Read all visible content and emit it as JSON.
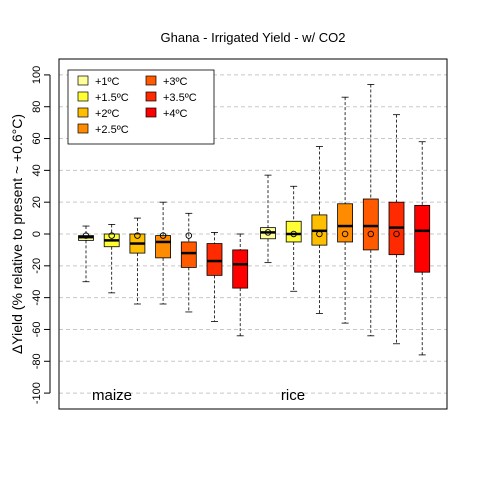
{
  "chart_data": {
    "type": "box",
    "title": "Ghana - Irrigated Yield - w/ CO2",
    "xlabel": "",
    "ylabel": "ΔYield (% relative to present ~ +0.6°C)",
    "ylim": [
      -110,
      110
    ],
    "yticks": [
      -100,
      -80,
      -60,
      -40,
      -20,
      0,
      20,
      40,
      60,
      80,
      100
    ],
    "grid": true,
    "legend_position": "top-left",
    "legend": [
      {
        "label": "+1ºC",
        "color": "#ffff99"
      },
      {
        "label": "+1.5ºC",
        "color": "#ffff33"
      },
      {
        "label": "+2ºC",
        "color": "#ffbf00"
      },
      {
        "label": "+2.5ºC",
        "color": "#ff8c00"
      },
      {
        "label": "+3ºC",
        "color": "#ff5a00"
      },
      {
        "label": "+3.5ºC",
        "color": "#ff2a00"
      },
      {
        "label": "+4ºC",
        "color": "#ff0000"
      }
    ],
    "groups": [
      {
        "name": "maize",
        "boxes": [
          {
            "level": "+1ºC",
            "whisker_low": -30,
            "q1": -4,
            "median": -2,
            "q3": -1,
            "whisker_high": 5,
            "mean": -1
          },
          {
            "level": "+1.5ºC",
            "whisker_low": -37,
            "q1": -8,
            "median": -4,
            "q3": 0,
            "whisker_high": 6,
            "mean": -1
          },
          {
            "level": "+2ºC",
            "whisker_low": -44,
            "q1": -12,
            "median": -6,
            "q3": 0,
            "whisker_high": 10,
            "mean": -1
          },
          {
            "level": "+2.5ºC",
            "whisker_low": -44,
            "q1": -15,
            "median": -5,
            "q3": -1,
            "whisker_high": 20,
            "mean": -1
          },
          {
            "level": "+3ºC",
            "whisker_low": -49,
            "q1": -21,
            "median": -12,
            "q3": -5,
            "whisker_high": 13,
            "mean": -1
          },
          {
            "level": "+3.5ºC",
            "whisker_low": -55,
            "q1": -26,
            "median": -17,
            "q3": -6,
            "whisker_high": 1,
            "mean": null
          },
          {
            "level": "+4ºC",
            "whisker_low": -64,
            "q1": -34,
            "median": -19,
            "q3": -10,
            "whisker_high": 0,
            "mean": null
          }
        ]
      },
      {
        "name": "rice",
        "boxes": [
          {
            "level": "+1ºC",
            "whisker_low": -18,
            "q1": -3,
            "median": 1,
            "q3": 4,
            "whisker_high": 37,
            "mean": 1
          },
          {
            "level": "+1.5ºC",
            "whisker_low": -36,
            "q1": -5,
            "median": 0,
            "q3": 8,
            "whisker_high": 30,
            "mean": 0
          },
          {
            "level": "+2ºC",
            "whisker_low": -50,
            "q1": -7,
            "median": 2,
            "q3": 12,
            "whisker_high": 55,
            "mean": 0
          },
          {
            "level": "+2.5ºC",
            "whisker_low": -56,
            "q1": -5,
            "median": 5,
            "q3": 19,
            "whisker_high": 86,
            "mean": 0
          },
          {
            "level": "+3ºC",
            "whisker_low": -64,
            "q1": -10,
            "median": 5,
            "q3": 22,
            "whisker_high": 94,
            "mean": 0
          },
          {
            "level": "+3.5ºC",
            "whisker_low": -69,
            "q1": -13,
            "median": 4,
            "q3": 20,
            "whisker_high": 75,
            "mean": 0
          },
          {
            "level": "+4ºC",
            "whisker_low": -76,
            "q1": -24,
            "median": 2,
            "q3": 18,
            "whisker_high": 58,
            "mean": null
          }
        ]
      }
    ]
  }
}
